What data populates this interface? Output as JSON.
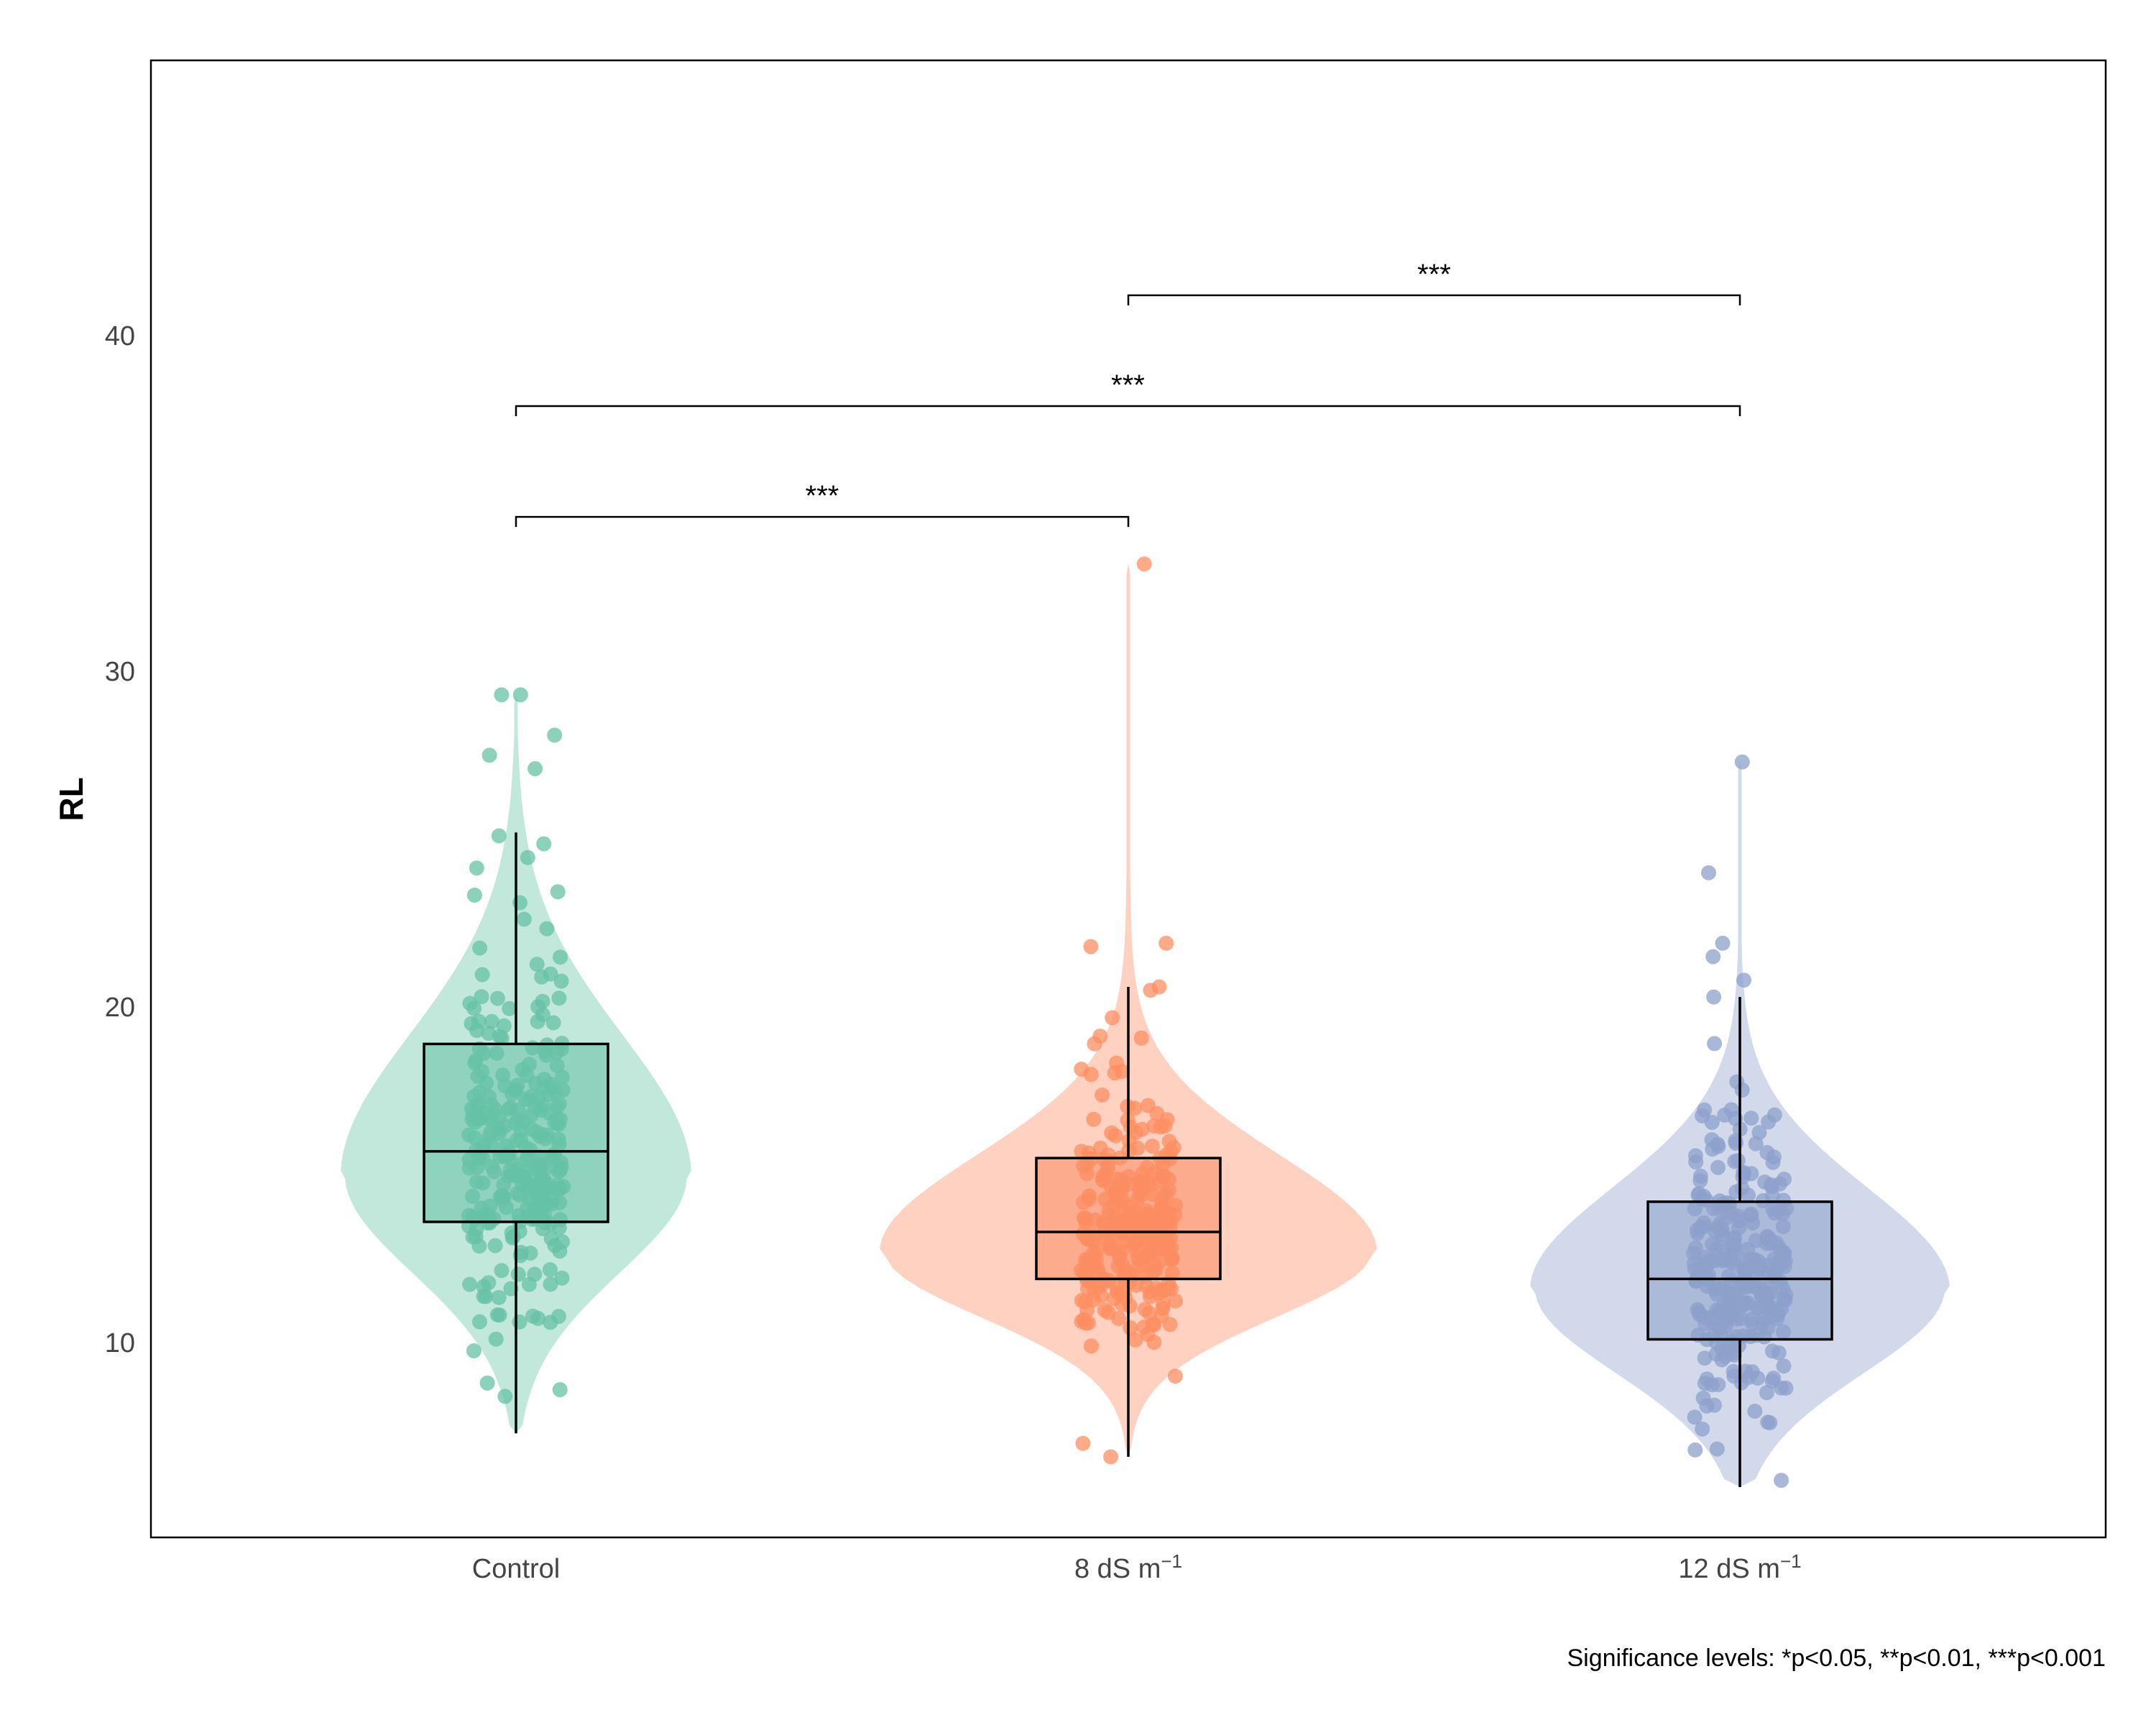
{
  "chart_data": {
    "type": "violin",
    "title": "",
    "xlabel": "",
    "ylabel": "RL",
    "ylim": [
      4.2,
      48.2
    ],
    "yticks": [
      10,
      20,
      30,
      40
    ],
    "grid": false,
    "categories": [
      "Control",
      "8 dS m⁻¹",
      "12 dS m⁻¹"
    ],
    "groups": [
      {
        "name": "Control",
        "label_base": "Control",
        "label_sup": "",
        "color": "#66C2A5",
        "violin_alpha": 0.4,
        "box": {
          "q1": 13.6,
          "median": 15.7,
          "q3": 18.9,
          "whisker_low": 7.3,
          "whisker_high": 25.2
        },
        "range": [
          7.3,
          29.3
        ],
        "mode": 15.0,
        "n_points": 280,
        "outliers": [
          29.3,
          29.3,
          28.1,
          27.5,
          27.1,
          8.4,
          8.6,
          8.8
        ]
      },
      {
        "name": "8 dS m⁻¹",
        "label_base": "8 dS m",
        "label_sup": "−1",
        "color": "#FC8D62",
        "violin_alpha": 0.4,
        "box": {
          "q1": 11.9,
          "median": 13.3,
          "q3": 15.5,
          "whisker_low": 6.6,
          "whisker_high": 20.6
        },
        "range": [
          6.6,
          33.2
        ],
        "mode": 12.7,
        "n_points": 280,
        "outliers": [
          33.2,
          21.9,
          21.8,
          20.6,
          6.6,
          7.0
        ]
      },
      {
        "name": "12 dS m⁻¹",
        "label_base": "12 dS m",
        "label_sup": "−1",
        "color": "#8DA0CB",
        "violin_alpha": 0.4,
        "box": {
          "q1": 10.1,
          "median": 11.9,
          "q3": 14.2,
          "whisker_low": 5.7,
          "whisker_high": 20.3
        },
        "range": [
          5.7,
          27.3
        ],
        "mode": 11.6,
        "n_points": 280,
        "outliers": [
          27.3,
          24.0,
          21.9,
          21.5,
          20.8,
          20.3
        ]
      }
    ],
    "comparisons": [
      {
        "from": 0,
        "to": 1,
        "y": 34.6,
        "label": "***"
      },
      {
        "from": 0,
        "to": 2,
        "y": 37.9,
        "label": "***"
      },
      {
        "from": 1,
        "to": 2,
        "y": 41.2,
        "label": "***"
      }
    ],
    "caption": "Significance levels: *p<0.05, **p<0.01, ***p<0.001"
  }
}
